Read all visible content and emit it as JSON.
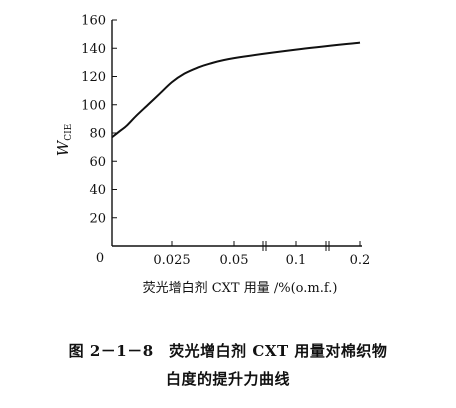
{
  "chart_data": {
    "type": "line",
    "title": "",
    "xlabel": "荧光增白剂 CXT 用量 /%(o.m.f.)",
    "ylabel": "W",
    "ylabel_subscript": "CIE",
    "x_tick_labels": [
      "0",
      "0.025",
      "0.05",
      "0.1",
      "0.2"
    ],
    "x_ticks_note": "axis broken between 0.05 and 0.1 and between 0.1 and 0.2",
    "y_ticks": [
      20,
      40,
      60,
      80,
      100,
      120,
      140,
      160
    ],
    "y_zero_label": "0",
    "ylim": [
      0,
      160
    ],
    "grid": false,
    "series": [
      {
        "x_positions": [
          0,
          0.003,
          0.006,
          0.01,
          0.015,
          0.02,
          0.025,
          0.03,
          0.035,
          0.04,
          0.05,
          0.1,
          0.2
        ],
        "y": [
          77,
          81,
          85,
          92,
          100,
          108,
          116,
          122,
          126,
          129,
          133,
          139,
          144
        ],
        "note": "x_positions give categorical/broken-axis positions mapped onto tick labels"
      }
    ]
  },
  "caption": {
    "line1": "图 2－1－8　荧光增白剂 CXT 用量对棉织物",
    "line2": "白度的提升力曲线"
  }
}
